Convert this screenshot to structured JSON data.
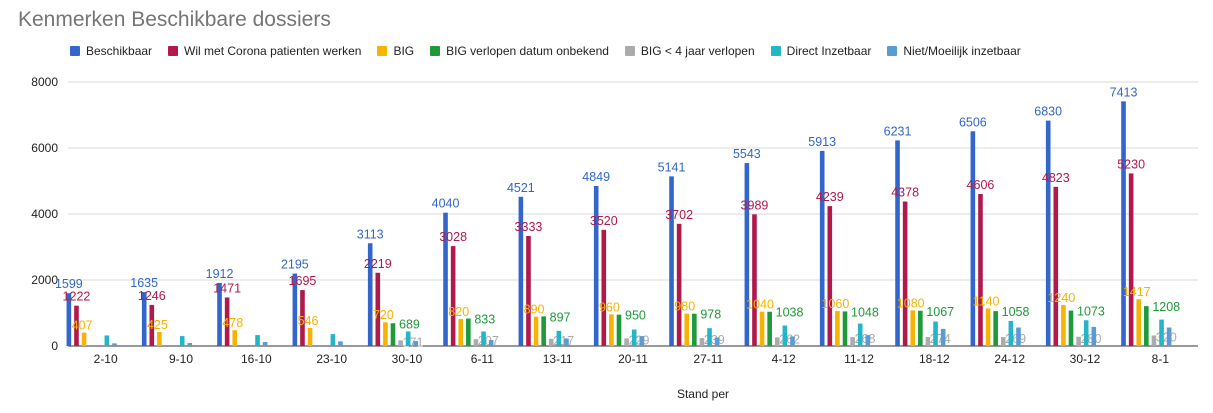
{
  "chart_data": {
    "type": "bar",
    "title": "Kenmerken Beschikbare dossiers",
    "xlabel": "Stand per",
    "ylabel": "",
    "ylim": [
      0,
      8000
    ],
    "yticks": [
      "0",
      "2000",
      "4000",
      "6000",
      "8000"
    ],
    "legend_position": "top",
    "grid": true,
    "categories": [
      "2-10",
      "9-10",
      "16-10",
      "23-10",
      "30-10",
      "6-11",
      "13-11",
      "20-11",
      "27-11",
      "4-12",
      "11-12",
      "18-12",
      "24-12",
      "30-12",
      "8-1"
    ],
    "series": [
      {
        "name": "Beschikbaar",
        "color": "#3366cc",
        "labeled": true,
        "values": [
          1599,
          1635,
          1912,
          2195,
          3113,
          4040,
          4521,
          4849,
          5141,
          5543,
          5913,
          6231,
          6506,
          6830,
          7413
        ]
      },
      {
        "name": "Wil met Corona patienten werken",
        "color": "#b0194a",
        "labeled": true,
        "values": [
          1222,
          1246,
          1471,
          1695,
          2219,
          3028,
          3333,
          3520,
          3702,
          3989,
          4239,
          4378,
          4606,
          4823,
          5230
        ]
      },
      {
        "name": "BIG",
        "color": "#f6b400",
        "labeled": true,
        "values": [
          407,
          425,
          478,
          546,
          720,
          820,
          890,
          960,
          980,
          1040,
          1060,
          1080,
          1140,
          1240,
          1417
        ]
      },
      {
        "name": "BIG verlopen datum onbekend",
        "color": "#1e9a3a",
        "labeled": true,
        "values": [
          null,
          null,
          null,
          null,
          689,
          833,
          897,
          950,
          978,
          1038,
          1048,
          1067,
          1058,
          1073,
          1208
        ]
      },
      {
        "name": "BIG < 4 jaar verlopen",
        "color": "#ababab",
        "labeled": true,
        "values": [
          null,
          null,
          null,
          null,
          171,
          207,
          217,
          229,
          239,
          262,
          268,
          274,
          269,
          280,
          320
        ]
      },
      {
        "name": "Direct Inzetbaar",
        "color": "#23b5c8",
        "labeled": false,
        "values": [
          320,
          300,
          330,
          360,
          440,
          440,
          460,
          500,
          540,
          620,
          680,
          740,
          760,
          780,
          800
        ]
      },
      {
        "name": "Niet/Moeilijk inzetbaar",
        "color": "#5b9bd5",
        "labeled": false,
        "values": [
          80,
          90,
          120,
          140,
          150,
          180,
          230,
          300,
          260,
          290,
          330,
          520,
          560,
          580,
          560
        ]
      }
    ]
  }
}
